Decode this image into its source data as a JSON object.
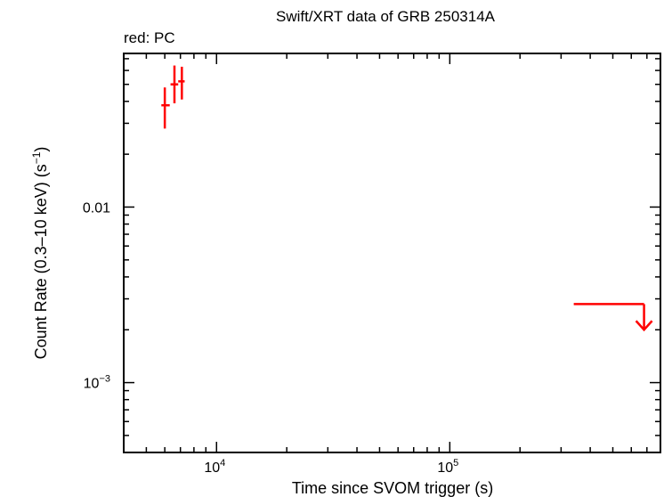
{
  "chart_data": {
    "type": "scatter",
    "title": "Swift/XRT data of GRB 250314A",
    "subtitle": "red: PC",
    "xlabel": "Time since SVOM trigger (s)",
    "ylabel_main": "Count Rate (0.3–10 keV) (s",
    "ylabel_exp": "−1",
    "ylabel_close": ")",
    "x_scale": "log",
    "y_scale": "log",
    "xlim": [
      4000,
      800000
    ],
    "ylim": [
      0.0004,
      0.075
    ],
    "x_ticks": [
      {
        "value": 10000,
        "base": "10",
        "exp": "4"
      },
      {
        "value": 100000,
        "base": "10",
        "exp": "5"
      }
    ],
    "y_ticks": [
      {
        "value": 0.01,
        "label": "0.01",
        "base": "",
        "exp": ""
      },
      {
        "value": 0.001,
        "label": "",
        "base": "10",
        "exp": "−3"
      }
    ],
    "series": [
      {
        "color": "#ff0000",
        "points": [
          {
            "x": 6000,
            "x_lo": 5800,
            "x_hi": 6300,
            "y": 0.038,
            "y_lo": 0.028,
            "y_hi": 0.048
          },
          {
            "x": 6600,
            "x_lo": 6350,
            "x_hi": 6850,
            "y": 0.05,
            "y_lo": 0.039,
            "y_hi": 0.064
          },
          {
            "x": 7100,
            "x_lo": 6850,
            "x_hi": 7300,
            "y": 0.052,
            "y_lo": 0.041,
            "y_hi": 0.063
          }
        ],
        "upper_limits": [
          {
            "x_lo": 340000,
            "x_hi": 730000,
            "y": 0.0028,
            "y_arrow_to": 0.002
          }
        ]
      }
    ]
  }
}
